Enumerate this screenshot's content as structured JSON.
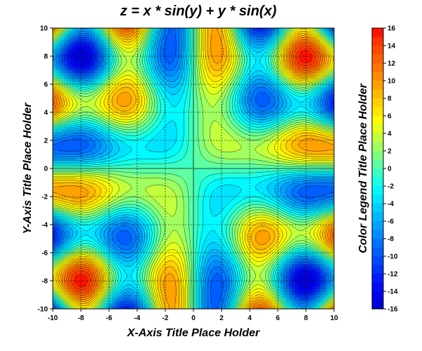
{
  "chart_data": {
    "type": "heatmap",
    "subtype": "filled-contour",
    "title": "z = x * sin(y) + y * sin(x)",
    "xlabel": "X-Axis Title Place Holder",
    "ylabel": "Y-Axis Title Place Holder",
    "colorbar_label": "Color Legend Title Place Holder",
    "function": "x*sin(y) + y*sin(x)",
    "xlim": [
      -10,
      10
    ],
    "ylim": [
      -10,
      10
    ],
    "xticks": [
      -10,
      -8,
      -6,
      -4,
      -2,
      0,
      2,
      4,
      6,
      8,
      10
    ],
    "yticks": [
      -10,
      -8,
      -6,
      -4,
      -2,
      0,
      2,
      4,
      6,
      8,
      10
    ],
    "grid": true,
    "grid_style": "dashed",
    "contour_levels": [
      -16,
      -15,
      -14,
      -13,
      -12,
      -11,
      -10,
      -9,
      -8,
      -7,
      -6,
      -5,
      -4,
      -3,
      -2,
      -1,
      0,
      1,
      2,
      3,
      4,
      5,
      6,
      7,
      8,
      9,
      10,
      11,
      12,
      13,
      14,
      15,
      16
    ],
    "colorbar_ticks": [
      16,
      14,
      12,
      10,
      8,
      6,
      4,
      2,
      0,
      -2,
      -4,
      -6,
      -8,
      -10,
      -12,
      -14,
      -16
    ],
    "colorbar_colors": [
      "#ff0000",
      "#ff3300",
      "#ff5500",
      "#ff7700",
      "#ff9900",
      "#ffbb00",
      "#ffdd00",
      "#ffff00",
      "#ccff33",
      "#99ff66",
      "#66ff99",
      "#33ffcc",
      "#00ffff",
      "#00ddff",
      "#00bbff",
      "#0099ff",
      "#0077ff",
      "#0055ff",
      "#0033ff",
      "#0011ff",
      "#0000ee",
      "#0000cc"
    ],
    "legend_position": "right"
  }
}
